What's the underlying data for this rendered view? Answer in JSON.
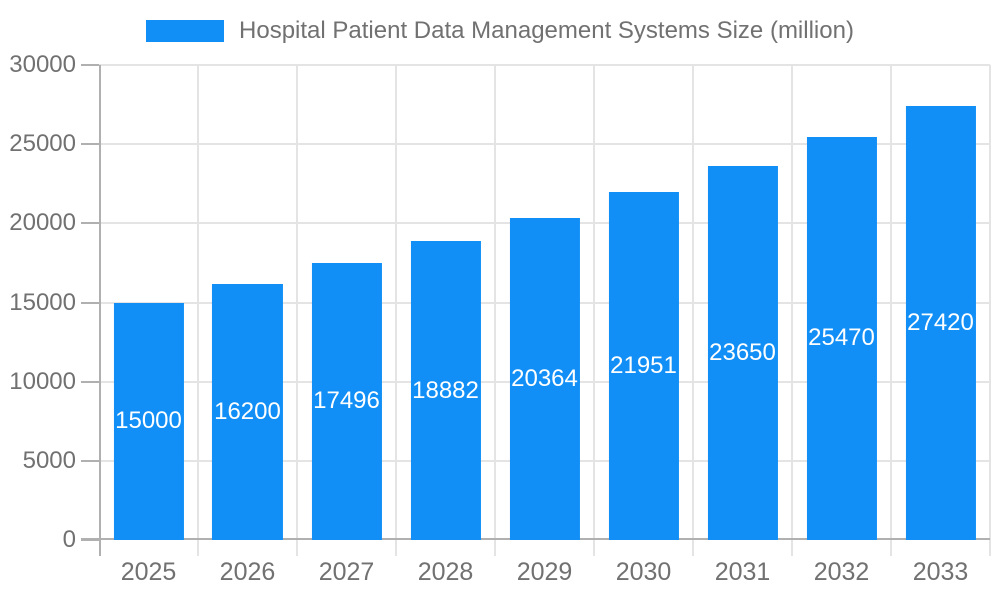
{
  "chart_data": {
    "type": "bar",
    "title": "Hospital Patient Data Management Systems Size (million)",
    "categories": [
      "2025",
      "2026",
      "2027",
      "2028",
      "2029",
      "2030",
      "2031",
      "2032",
      "2033"
    ],
    "values": [
      15000,
      16200,
      17496,
      18882,
      20364,
      21951,
      23650,
      25470,
      27420
    ],
    "xlabel": "",
    "ylabel": "",
    "ylim": [
      0,
      30000
    ],
    "ytick_step": 5000,
    "yticks": [
      0,
      5000,
      10000,
      15000,
      20000,
      25000,
      30000
    ],
    "grid": true,
    "legend_position": "top",
    "value_labels": "inside-center",
    "colors": {
      "bar": "#118FF7",
      "value_label": "#FFFFFF",
      "axis_text": "#717171",
      "grid": "#E4E4E4",
      "axis_line": "#B0B0B0",
      "background": "#FFFFFF"
    }
  }
}
